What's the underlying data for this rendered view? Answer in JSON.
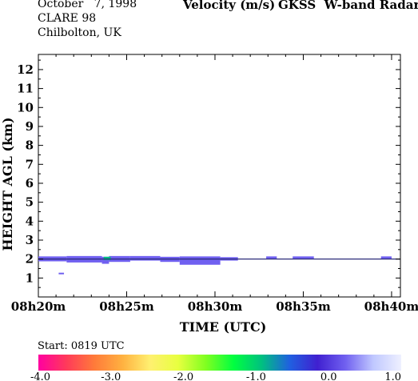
{
  "header": {
    "date_line": "October   7, 1998",
    "campaign": "CLARE 98",
    "location": "Chilbolton, UK",
    "quantity": "Velocity (m/s)",
    "instrument": "GKSS  W-band Radar"
  },
  "chart_data": {
    "type": "heatmap",
    "xlabel": "TIME (UTC)",
    "ylabel": "HEIGHT AGL (km)",
    "x_ticks": [
      "08h20m",
      "08h25m",
      "08h30m",
      "08h35m",
      "08h40m"
    ],
    "x_tick_minutes": [
      0,
      5,
      10,
      15,
      20
    ],
    "xlim_minutes": [
      0,
      20.5
    ],
    "y_ticks": [
      1,
      2,
      3,
      4,
      5,
      6,
      7,
      8,
      9,
      10,
      11,
      12
    ],
    "ylim": [
      0,
      12.8
    ],
    "cloud_layer": {
      "base_km": 1.9,
      "top_km": 2.1,
      "start_minutes": 0.0,
      "end_minutes": 20.5,
      "velocity_ms": 0.2,
      "note_color": "#3a2fd0"
    },
    "echo_segments": [
      {
        "t0": 0.0,
        "t1": 1.6,
        "h0": 1.88,
        "h1": 2.14,
        "v": 0.3
      },
      {
        "t0": 1.6,
        "t1": 3.6,
        "h0": 1.82,
        "h1": 2.16,
        "v": 0.2
      },
      {
        "t0": 3.6,
        "t1": 4.0,
        "h0": 1.75,
        "h1": 2.12,
        "v": 0.3
      },
      {
        "t0": 4.0,
        "t1": 5.2,
        "h0": 1.85,
        "h1": 2.16,
        "v": 0.1
      },
      {
        "t0": 5.2,
        "t1": 6.9,
        "h0": 1.92,
        "h1": 2.16,
        "v": 0.2
      },
      {
        "t0": 6.9,
        "t1": 8.0,
        "h0": 1.85,
        "h1": 2.12,
        "v": 0.3
      },
      {
        "t0": 8.0,
        "t1": 10.3,
        "h0": 1.7,
        "h1": 2.14,
        "v": 0.2
      },
      {
        "t0": 10.3,
        "t1": 11.3,
        "h0": 1.92,
        "h1": 2.1,
        "v": 0.3
      },
      {
        "t0": 12.9,
        "t1": 13.5,
        "h0": 2.0,
        "h1": 2.14,
        "v": 0.3
      },
      {
        "t0": 14.4,
        "t1": 15.6,
        "h0": 2.0,
        "h1": 2.14,
        "v": 0.3
      },
      {
        "t0": 19.4,
        "t1": 20.0,
        "h0": 2.0,
        "h1": 2.14,
        "v": 0.3
      }
    ],
    "green_echo": {
      "t0": 3.7,
      "t1": 4.1,
      "h0": 1.95,
      "h1": 2.12,
      "v": -0.8
    },
    "stray_echo": {
      "t0": 1.15,
      "t1": 1.45,
      "h0": 1.22,
      "h1": 1.28,
      "v": 0.3
    },
    "colorbar": {
      "title": "Start: 0819 UTC",
      "min": -4.0,
      "max": 1.0,
      "tick_labels": [
        "-4.0",
        "-3.0",
        "-2.0",
        "-1.0",
        "0.0",
        "1.0"
      ],
      "tick_values": [
        -4,
        -3,
        -2,
        -1,
        0,
        1
      ],
      "colors": [
        "#ff00a0",
        "#ff3a5a",
        "#ff7a3a",
        "#ffb040",
        "#fff070",
        "#e8ff40",
        "#80ff20",
        "#00ff40",
        "#00c080",
        "#2060e0",
        "#4020d0",
        "#7060f0",
        "#c0c8ff",
        "#eef0ff"
      ]
    }
  }
}
